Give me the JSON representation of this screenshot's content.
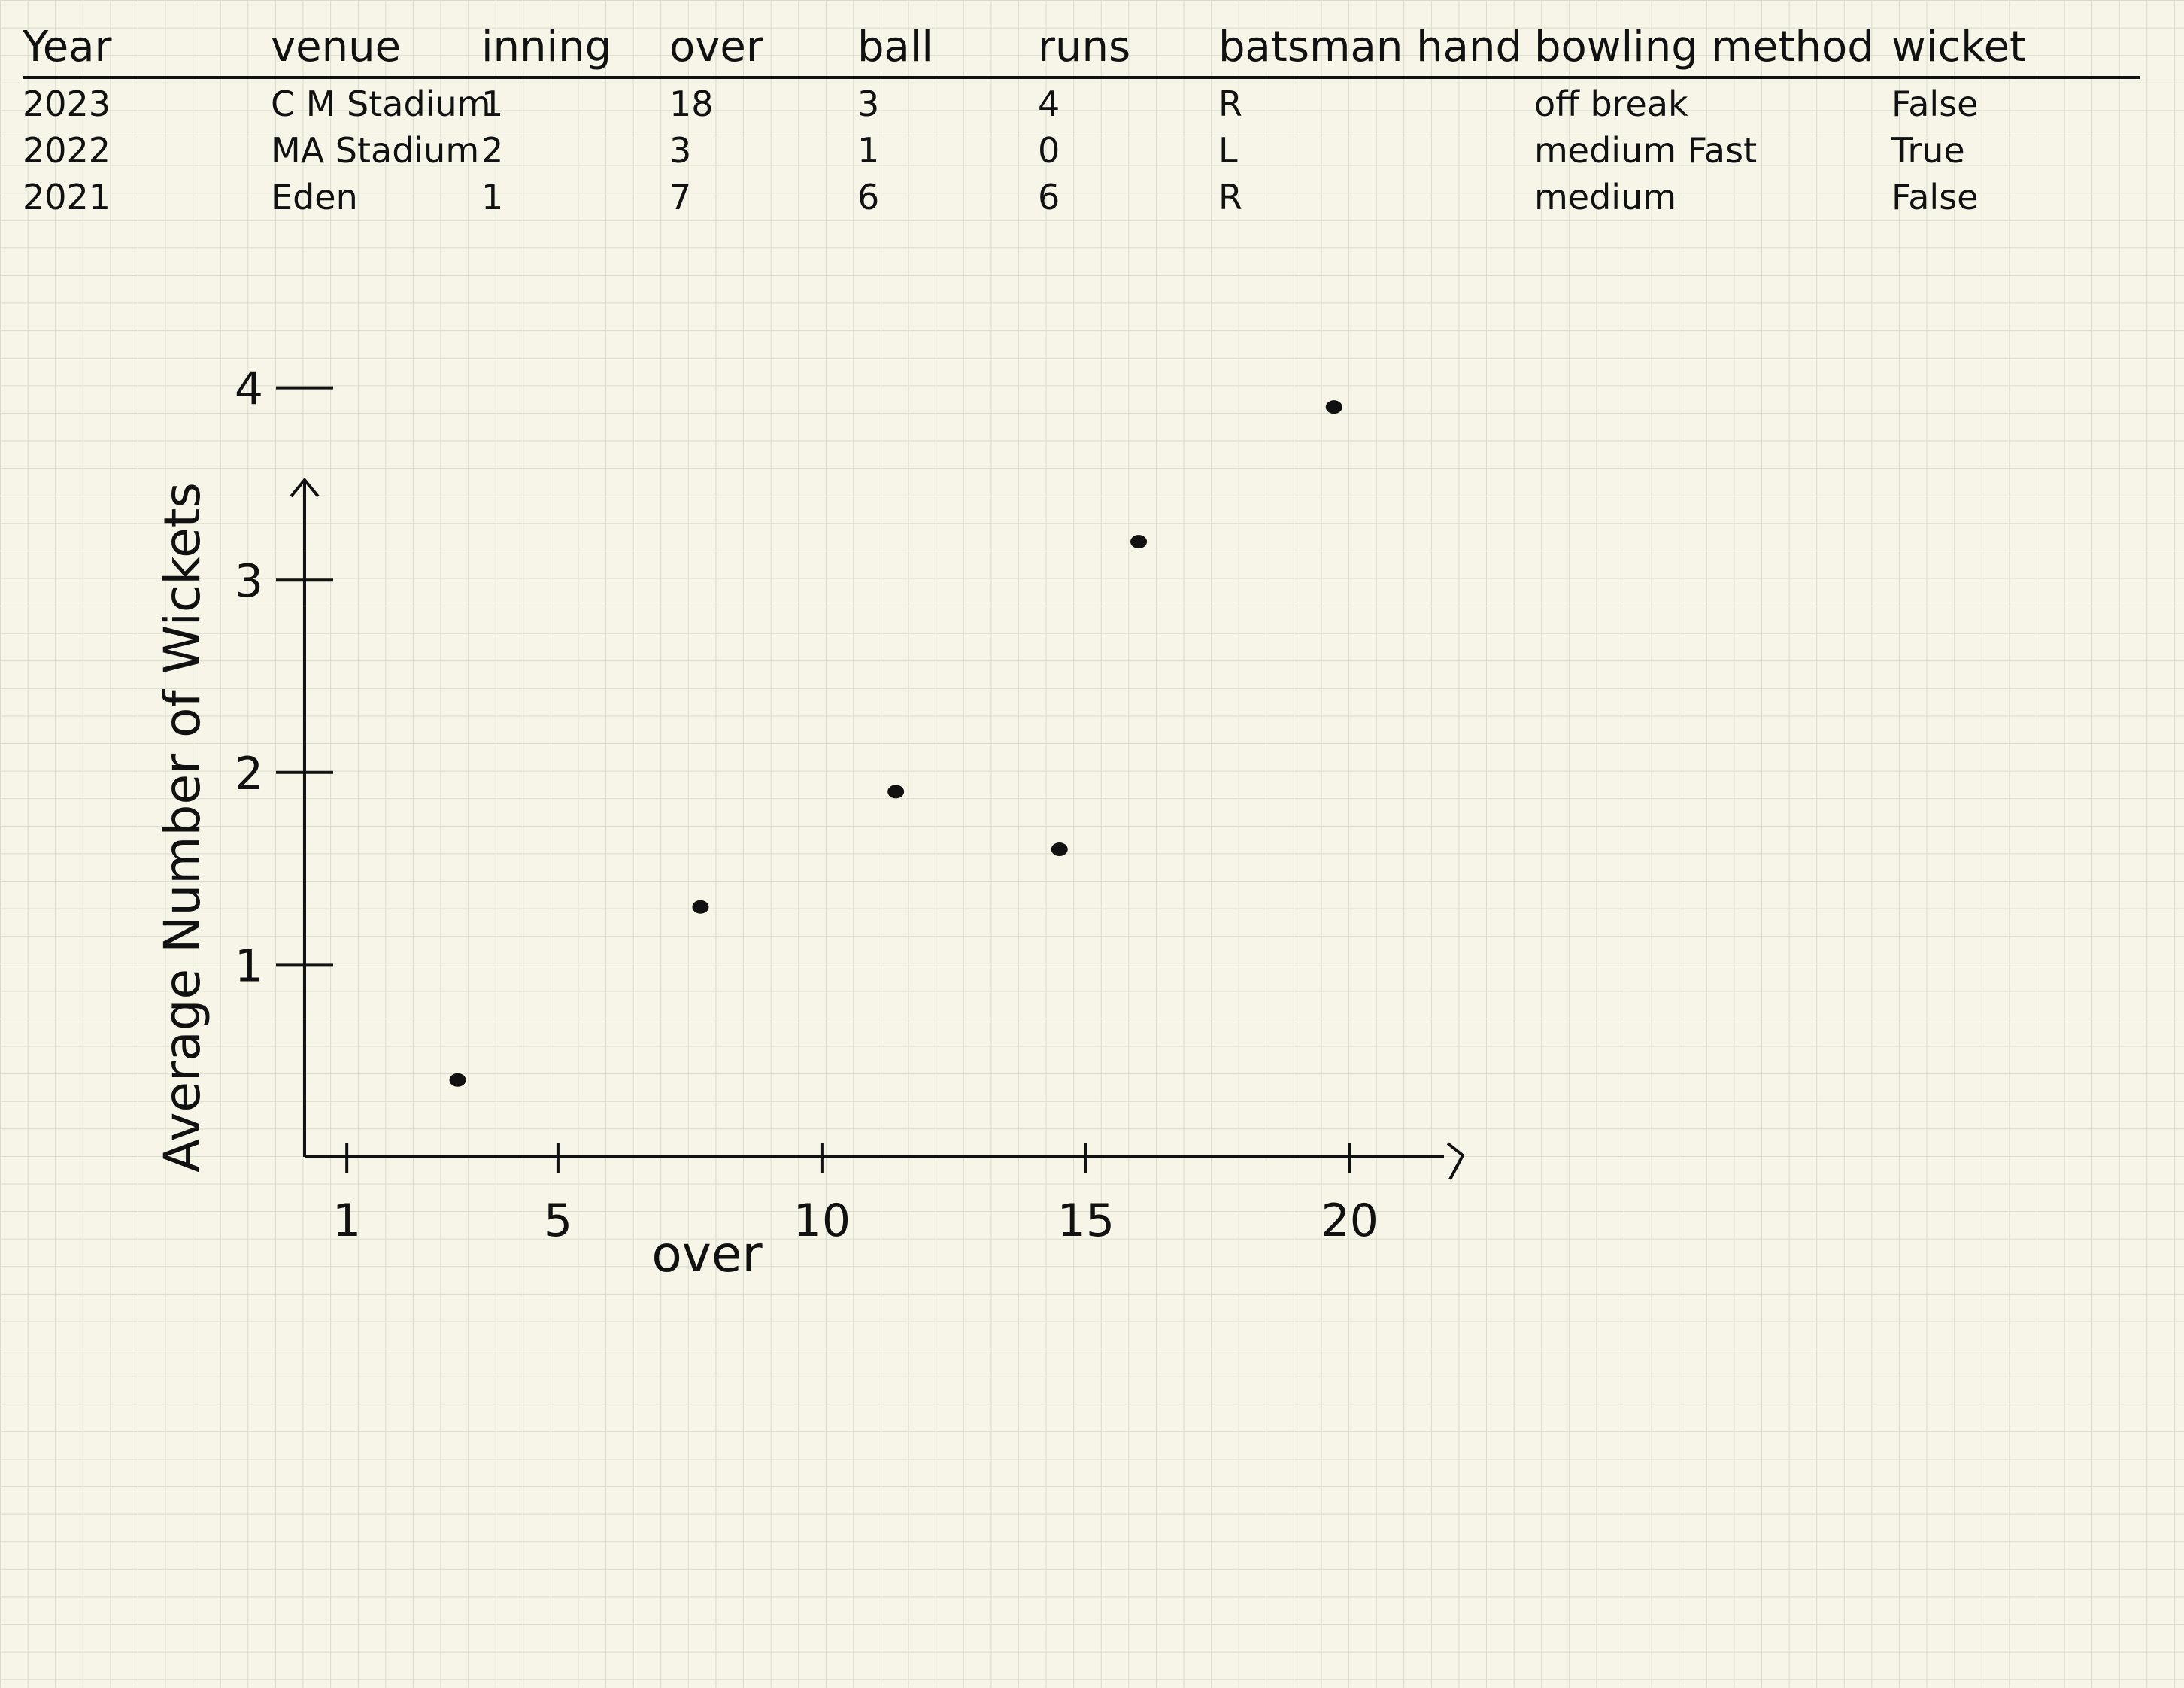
{
  "table": {
    "headers": [
      "Year",
      "venue",
      "inning",
      "over",
      "ball",
      "runs",
      "batsman hand",
      "bowling method",
      "wicket"
    ],
    "rows": [
      [
        "2023",
        "C M Stadium",
        "1",
        "18",
        "3",
        "4",
        "R",
        "off break",
        "False"
      ],
      [
        "2022",
        "MA Stadium",
        "2",
        "3",
        "1",
        "0",
        "L",
        "medium Fast",
        "True"
      ],
      [
        "2021",
        "Eden",
        "1",
        "7",
        "6",
        "6",
        "R",
        "medium",
        "False"
      ]
    ]
  },
  "chart_data": {
    "type": "scatter",
    "xlabel": "over",
    "ylabel": "Average Number of Wickets",
    "x_ticks": [
      1,
      5,
      10,
      15,
      20
    ],
    "y_ticks": [
      1,
      2,
      3,
      4
    ],
    "xlim": [
      0.2,
      21
    ],
    "ylim": [
      0,
      5
    ],
    "points": [
      {
        "x": 3.1,
        "y": 0.4
      },
      {
        "x": 7.7,
        "y": 1.3
      },
      {
        "x": 11.4,
        "y": 1.9
      },
      {
        "x": 14.5,
        "y": 1.6
      },
      {
        "x": 16.0,
        "y": 3.2
      },
      {
        "x": 19.7,
        "y": 3.9
      }
    ]
  }
}
